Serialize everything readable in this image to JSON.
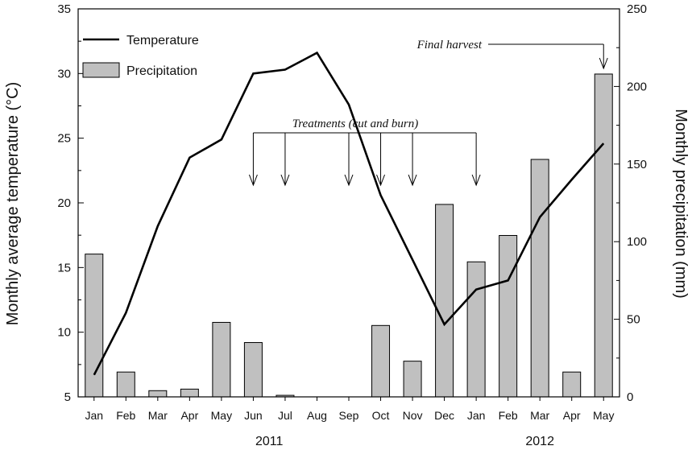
{
  "chart_data": {
    "type": "bar",
    "categories": [
      "Jan",
      "Feb",
      "Mar",
      "Apr",
      "May",
      "Jun",
      "Jul",
      "Aug",
      "Sep",
      "Oct",
      "Nov",
      "Dec",
      "Jan",
      "Feb",
      "Mar",
      "Apr",
      "May"
    ],
    "years": [
      {
        "label": "2011",
        "from": 0,
        "to": 11
      },
      {
        "label": "2012",
        "from": 12,
        "to": 16
      }
    ],
    "series": [
      {
        "name": "Temperature",
        "type": "line",
        "axis": "left",
        "color": "#000000",
        "values": [
          6.7,
          11.5,
          18.2,
          23.5,
          24.9,
          30.0,
          30.3,
          31.6,
          27.6,
          20.6,
          15.6,
          10.6,
          13.3,
          14.0,
          18.9,
          21.8,
          24.6
        ]
      },
      {
        "name": "Precipitation",
        "type": "bar",
        "axis": "right",
        "color": "#c0c0c0",
        "values": [
          92,
          16,
          4,
          5,
          48,
          35,
          1,
          0,
          0,
          46,
          23,
          124,
          87,
          104,
          153,
          16,
          208
        ]
      }
    ],
    "y_left": {
      "label": "Monthly average temperature (°C)",
      "min": 5,
      "max": 35,
      "ticks": [
        5,
        10,
        15,
        20,
        25,
        30,
        35
      ]
    },
    "y_right": {
      "label": "Monthly precipitation (mm)",
      "min": 0,
      "max": 250,
      "ticks": [
        0,
        50,
        100,
        150,
        200,
        250
      ]
    },
    "legend": {
      "placement": "top-left",
      "items": [
        "Temperature",
        "Precipitation"
      ]
    },
    "annotations": {
      "treatments_label": "Treatments  (cut and burn)",
      "treatment_months": [
        5,
        6,
        8,
        9,
        10,
        12
      ],
      "final_harvest_label": "Final harvest",
      "final_harvest_month": 16
    },
    "grid": false
  }
}
